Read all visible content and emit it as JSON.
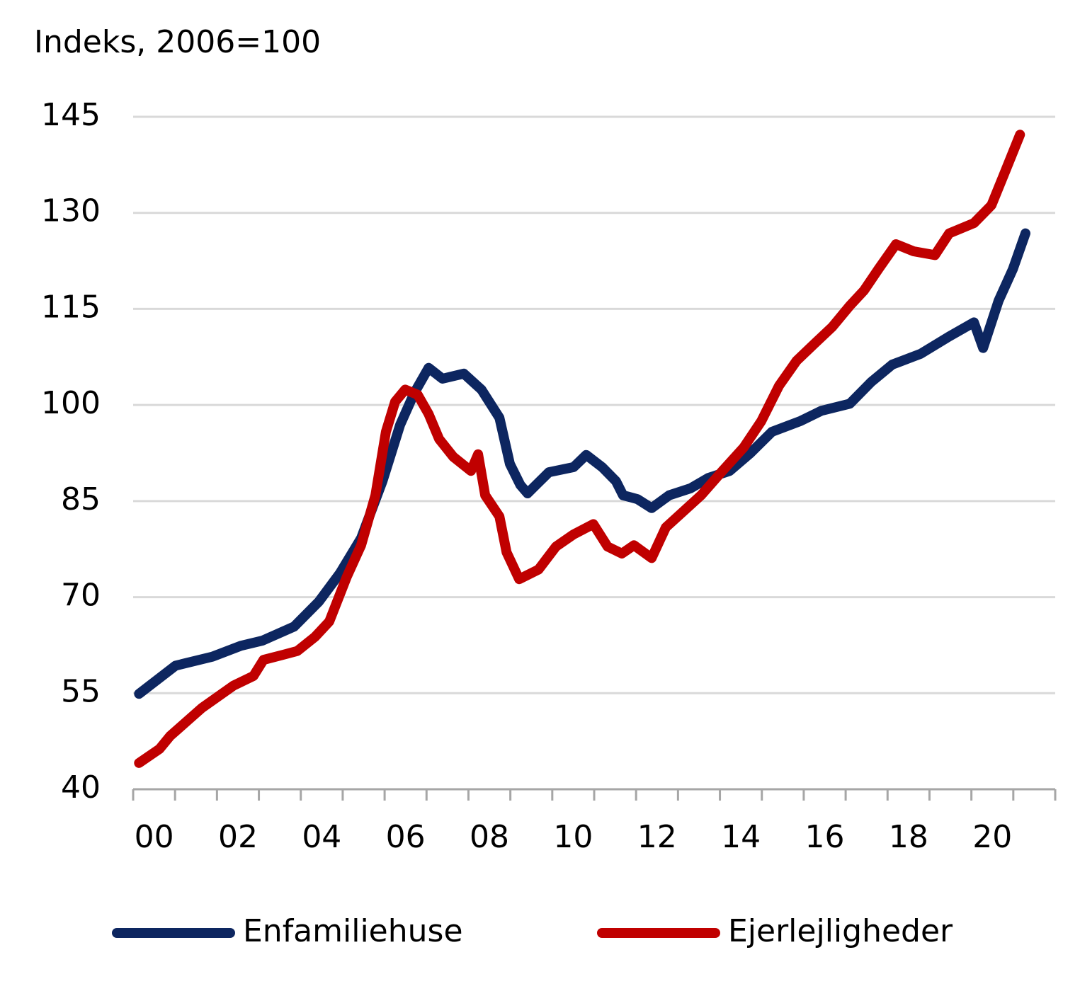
{
  "chart_data": {
    "type": "line",
    "title": "Indeks, 2006=100",
    "xlim": [
      2000,
      2022
    ],
    "xticks": [
      2000,
      2001,
      2002,
      2003,
      2004,
      2005,
      2006,
      2007,
      2008,
      2009,
      2010,
      2011,
      2012,
      2013,
      2014,
      2015,
      2016,
      2017,
      2018,
      2019,
      2020,
      2021,
      2022
    ],
    "xtick_labels": [
      {
        "value": 2000.5,
        "label": "00"
      },
      {
        "value": 2002.5,
        "label": "02"
      },
      {
        "value": 2004.5,
        "label": "04"
      },
      {
        "value": 2006.5,
        "label": "06"
      },
      {
        "value": 2008.5,
        "label": "08"
      },
      {
        "value": 2010.5,
        "label": "10"
      },
      {
        "value": 2012.5,
        "label": "12"
      },
      {
        "value": 2014.5,
        "label": "14"
      },
      {
        "value": 2016.5,
        "label": "16"
      },
      {
        "value": 2018.5,
        "label": "18"
      },
      {
        "value": 2020.5,
        "label": "20"
      }
    ],
    "ylim": [
      40,
      145
    ],
    "yticks": [
      40,
      55,
      70,
      85,
      100,
      115,
      130,
      145
    ],
    "grid": true,
    "legend": "bottom",
    "series": [
      {
        "name": "Enfamiliehuse",
        "color": "#0d2660",
        "x": [
          2000.14,
          2001.01,
          2001.89,
          2002.57,
          2003.08,
          2003.84,
          2004.43,
          2004.93,
          2005.44,
          2005.95,
          2006.37,
          2006.71,
          2007.05,
          2007.38,
          2007.89,
          2008.31,
          2008.74,
          2008.99,
          2009.24,
          2009.41,
          2009.92,
          2010.51,
          2010.81,
          2011.19,
          2011.52,
          2011.69,
          2012.03,
          2012.37,
          2012.79,
          2013.3,
          2013.72,
          2014.23,
          2014.73,
          2015.24,
          2015.92,
          2016.42,
          2017.1,
          2017.61,
          2018.11,
          2018.79,
          2019.47,
          2020.06,
          2020.28,
          2020.65,
          2020.99,
          2021.29
        ],
        "values": [
          54.9,
          59.3,
          60.7,
          62.4,
          63.2,
          65.4,
          69.3,
          73.7,
          79.2,
          88.1,
          96.9,
          101.9,
          105.8,
          104.1,
          104.9,
          102.4,
          98.0,
          90.8,
          87.5,
          86.2,
          89.5,
          90.3,
          92.2,
          90.3,
          88.1,
          85.9,
          85.3,
          83.9,
          85.9,
          87.0,
          88.6,
          89.7,
          92.5,
          95.8,
          97.5,
          99.1,
          100.2,
          103.6,
          106.3,
          108.0,
          110.7,
          112.9,
          108.9,
          116.3,
          121.2,
          126.8
        ]
      },
      {
        "name": "Ejerlejligheder",
        "color": "#c00000",
        "x": [
          2000.14,
          2000.63,
          2000.88,
          2001.64,
          2002.4,
          2002.87,
          2003.11,
          2003.58,
          2003.92,
          2004.34,
          2004.68,
          2005.1,
          2005.44,
          2005.78,
          2006.03,
          2006.25,
          2006.49,
          2006.79,
          2007.05,
          2007.3,
          2007.64,
          2008.06,
          2008.23,
          2008.4,
          2008.74,
          2008.91,
          2009.21,
          2009.67,
          2010.09,
          2010.51,
          2010.98,
          2011.32,
          2011.66,
          2011.95,
          2012.37,
          2012.71,
          2013.13,
          2013.55,
          2014.06,
          2014.57,
          2014.99,
          2015.41,
          2015.83,
          2016.26,
          2016.68,
          2017.1,
          2017.44,
          2017.78,
          2018.2,
          2018.62,
          2019.13,
          2019.47,
          2020.06,
          2020.48,
          2020.82,
          2021.16
        ],
        "values": [
          44.1,
          46.3,
          48.3,
          52.7,
          56.2,
          57.7,
          60.2,
          61.0,
          61.6,
          63.8,
          66.2,
          73.2,
          78.1,
          85.9,
          95.8,
          100.5,
          102.4,
          101.6,
          98.6,
          94.7,
          91.9,
          89.7,
          92.3,
          85.9,
          82.6,
          77.0,
          72.8,
          74.3,
          77.9,
          79.8,
          81.4,
          77.9,
          76.8,
          78.1,
          76.1,
          80.9,
          83.4,
          85.9,
          89.7,
          93.4,
          97.5,
          103.0,
          106.9,
          109.6,
          112.2,
          115.5,
          117.9,
          121.2,
          125.1,
          124.0,
          123.4,
          126.8,
          128.4,
          131.2,
          136.7,
          142.2
        ]
      }
    ]
  }
}
